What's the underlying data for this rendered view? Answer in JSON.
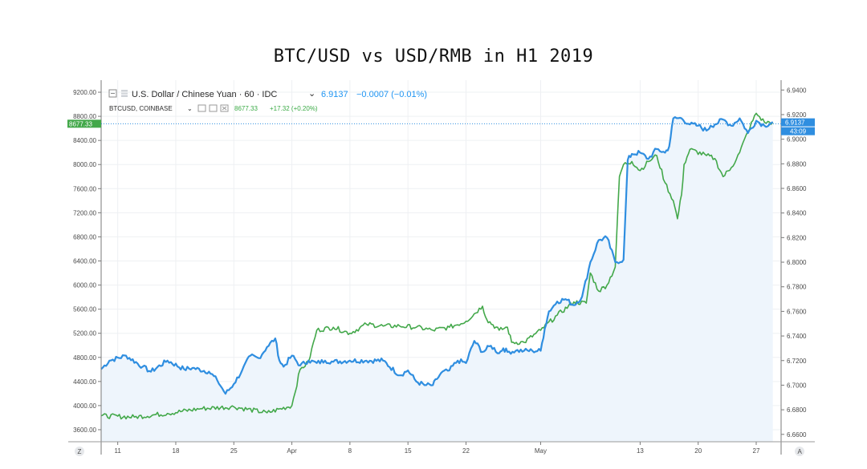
{
  "page_title": "BTC/USD vs USD/RMB in H1 2019",
  "legend": {
    "usdcny_label": "U.S. Dollar / Chinese Yuan · 60 · IDC",
    "usdcny_value": "6.9137",
    "usdcny_change": "−0.0007 (−0.01%)",
    "btcusd_label": "BTCUSD, COINBASE",
    "btcusd_value": "8677.33",
    "btcusd_change": "+17.32 (+0.20%)"
  },
  "price_tags": {
    "btc_last": "8677.33",
    "cny_last": "6.9137",
    "countdown": "43:09"
  },
  "axis_corner": {
    "left": "Z",
    "right": "A"
  },
  "colors": {
    "btc": "#43a84a",
    "usdcny": "#2f8ee0",
    "fill": "#eef5fc",
    "grid": "#eef0f3",
    "dotted": "#2f8ee0"
  },
  "chart_data": {
    "type": "line",
    "title": "BTC/USD vs USD/RMB in H1 2019",
    "x_ticks": [
      "11",
      "18",
      "25",
      "Apr",
      "8",
      "15",
      "22",
      "May",
      "13",
      "20",
      "27"
    ],
    "x_positions": [
      0,
      7,
      14,
      21,
      28,
      35,
      42,
      51,
      63,
      70,
      77
    ],
    "left_axis": {
      "ticks": [
        "9200.00",
        "8800.00",
        "8400.00",
        "8000.00",
        "7600.00",
        "7200.00",
        "6800.00",
        "6400.00",
        "6000.00",
        "5600.00",
        "5200.00",
        "4800.00",
        "4400.00",
        "4000.00",
        "3600.00"
      ],
      "ylim": [
        3400,
        9400
      ]
    },
    "right_axis": {
      "ticks": [
        "6.9400",
        "6.9200",
        "6.9000",
        "6.8800",
        "6.8600",
        "6.8400",
        "6.8200",
        "6.8000",
        "6.7800",
        "6.7600",
        "6.7400",
        "6.7200",
        "6.7000",
        "6.6800",
        "6.6600"
      ],
      "ylim": [
        6.654,
        6.948
      ]
    },
    "xlim": [
      -2,
      80
    ],
    "series": [
      {
        "name": "BTCUSD, COINBASE",
        "axis": "left",
        "color": "#43a84a",
        "x": [
          -2,
          2,
          6,
          10,
          14,
          18,
          21,
          22,
          23,
          24,
          26,
          28,
          30,
          32,
          34,
          36,
          38,
          40,
          42,
          44,
          44.5,
          46,
          47,
          47.5,
          49,
          51,
          53,
          55,
          56.5,
          57,
          58,
          59,
          60,
          60.5,
          61,
          62,
          63,
          64,
          65,
          66,
          67,
          67.5,
          68,
          68.3,
          69,
          71,
          72,
          73,
          74,
          75,
          76,
          77,
          78,
          79
        ],
        "y": [
          3830,
          3810,
          3870,
          3950,
          3980,
          3880,
          4000,
          4600,
          4720,
          5250,
          5300,
          5200,
          5350,
          5320,
          5320,
          5300,
          5250,
          5300,
          5400,
          5650,
          5430,
          5250,
          5300,
          5050,
          5050,
          5250,
          5500,
          5720,
          5700,
          6200,
          5900,
          6000,
          6300,
          7800,
          8000,
          8050,
          7900,
          8050,
          8150,
          7700,
          7400,
          7100,
          7500,
          8000,
          8250,
          8150,
          8100,
          7800,
          7950,
          8200,
          8550,
          8850,
          8700,
          8700
        ]
      },
      {
        "name": "U.S. Dollar / Chinese Yuan · 60 · IDC",
        "axis": "right",
        "color": "#2f8ee0",
        "x": [
          -2,
          -1,
          1,
          3,
          4,
          6,
          8,
          9,
          11,
          12,
          13,
          14,
          15,
          16,
          17,
          18,
          19,
          19.5,
          20,
          21,
          22,
          23,
          24,
          25,
          26,
          28,
          30,
          32,
          34,
          35,
          36,
          37,
          38,
          38.5,
          39,
          40,
          41,
          42,
          43,
          44,
          45,
          46,
          46.5,
          47,
          48,
          49,
          50,
          51,
          51.5,
          52,
          53,
          54,
          55,
          56,
          57,
          58,
          59,
          60,
          61,
          61.5,
          62,
          63,
          64,
          65,
          66,
          66.5,
          67,
          68,
          69,
          70,
          71,
          71.5,
          72,
          73,
          74,
          75,
          76,
          77,
          78,
          79
        ],
        "y": [
          6.713,
          6.72,
          6.724,
          6.715,
          6.711,
          6.72,
          6.713,
          6.714,
          6.711,
          6.704,
          6.693,
          6.701,
          6.712,
          6.724,
          6.722,
          6.731,
          6.738,
          6.72,
          6.715,
          6.724,
          6.716,
          6.72,
          6.718,
          6.72,
          6.719,
          6.72,
          6.72,
          6.72,
          6.708,
          6.712,
          6.703,
          6.7,
          6.7,
          6.705,
          6.71,
          6.712,
          6.72,
          6.718,
          6.736,
          6.727,
          6.732,
          6.726,
          6.73,
          6.727,
          6.728,
          6.728,
          6.728,
          6.728,
          6.746,
          6.76,
          6.768,
          6.77,
          6.765,
          6.772,
          6.8,
          6.818,
          6.82,
          6.8,
          6.802,
          6.883,
          6.888,
          6.889,
          6.884,
          6.892,
          6.889,
          6.894,
          6.917,
          6.917,
          6.912,
          6.911,
          6.907,
          6.911,
          6.912,
          6.916,
          6.911,
          6.917,
          6.905,
          6.915,
          6.911,
          6.914
        ]
      }
    ],
    "last_values": {
      "btc": 8677.33,
      "usdcny": 6.9137
    },
    "grid": true,
    "legend_position": "top-left"
  }
}
